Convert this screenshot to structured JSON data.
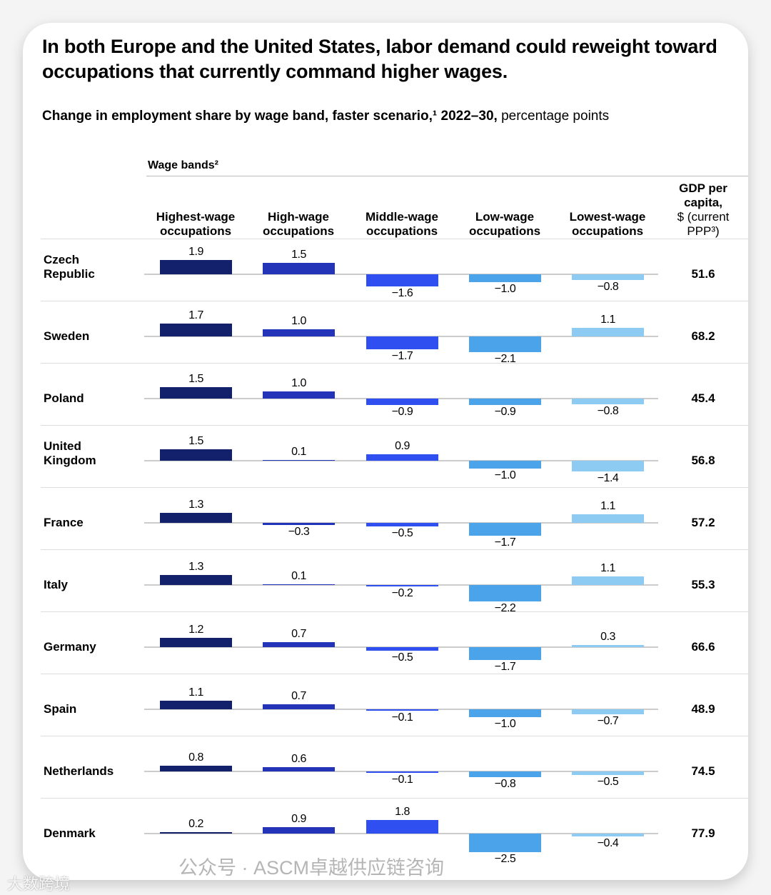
{
  "title": "In both Europe and the United States, labor demand could reweight toward occupations that currently command higher wages.",
  "subtitle_bold": "Change in employment share by wage band, faster scenario,¹ 2022–30,",
  "subtitle_rest": " percentage points",
  "wage_bands_label": "Wage bands²",
  "gdp_header_bold": "GDP per capita,",
  "gdp_header_rest": "$ (current PPP³)",
  "colors": [
    "#13206b",
    "#2334b8",
    "#2f4ff0",
    "#4ba3ea",
    "#8ecbf2"
  ],
  "watermark_main": "公众号 · ASCM卓越供应链咨询",
  "watermark_corner": "大数跨境",
  "chart_data": {
    "type": "bar",
    "title": "Change in employment share by wage band, faster scenario, 2022–30, percentage points",
    "categories": [
      "Highest-wage occupations",
      "High-wage occupations",
      "Middle-wage occupations",
      "Low-wage occupations",
      "Lowest-wage occupations"
    ],
    "rows": [
      {
        "country": "Czech Republic",
        "values": [
          1.9,
          1.5,
          -1.6,
          -1.0,
          -0.8
        ],
        "gdp": "51.6"
      },
      {
        "country": "Sweden",
        "values": [
          1.7,
          1.0,
          -1.7,
          -2.1,
          1.1
        ],
        "gdp": "68.2"
      },
      {
        "country": "Poland",
        "values": [
          1.5,
          1.0,
          -0.9,
          -0.9,
          -0.8
        ],
        "gdp": "45.4"
      },
      {
        "country": "United Kingdom",
        "values": [
          1.5,
          0.1,
          0.9,
          -1.0,
          -1.4
        ],
        "gdp": "56.8"
      },
      {
        "country": "France",
        "values": [
          1.3,
          -0.3,
          -0.5,
          -1.7,
          1.1
        ],
        "gdp": "57.2"
      },
      {
        "country": "Italy",
        "values": [
          1.3,
          0.1,
          -0.2,
          -2.2,
          1.1
        ],
        "gdp": "55.3"
      },
      {
        "country": "Germany",
        "values": [
          1.2,
          0.7,
          -0.5,
          -1.7,
          0.3
        ],
        "gdp": "66.6"
      },
      {
        "country": "Spain",
        "values": [
          1.1,
          0.7,
          -0.1,
          -1.0,
          -0.7
        ],
        "gdp": "48.9"
      },
      {
        "country": "Netherlands",
        "values": [
          0.8,
          0.6,
          -0.1,
          -0.8,
          -0.5
        ],
        "gdp": "74.5"
      },
      {
        "country": "Denmark",
        "values": [
          0.2,
          0.9,
          1.8,
          -2.5,
          -0.4
        ],
        "gdp": "77.9"
      }
    ]
  }
}
